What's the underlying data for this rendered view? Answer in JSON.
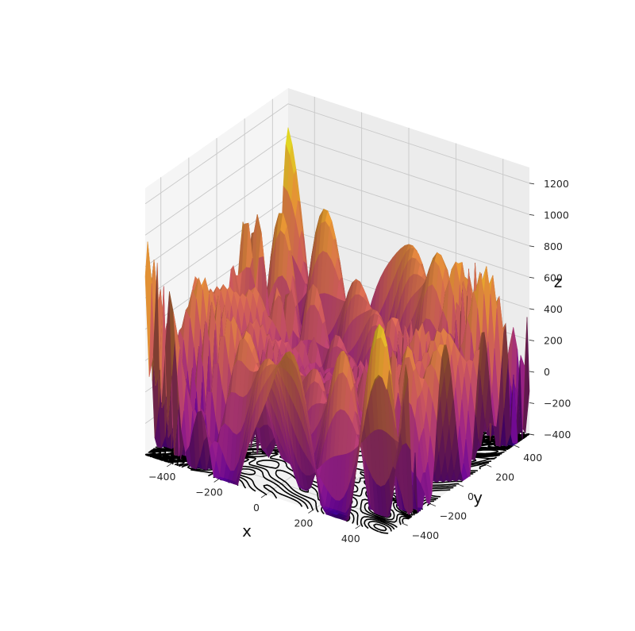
{
  "chart_data": {
    "type": "surface3d",
    "title": "",
    "xlabel": "x",
    "ylabel": "y",
    "zlabel": "z",
    "x_ticks": [
      -400,
      -200,
      0,
      200,
      400
    ],
    "y_ticks": [
      -400,
      -200,
      0,
      200,
      400
    ],
    "z_ticks": [
      -400,
      -200,
      0,
      200,
      400,
      600,
      800,
      1000,
      1200
    ],
    "xlim": [
      -512,
      512
    ],
    "ylim": [
      -512,
      512
    ],
    "zlim": [
      -400,
      1300
    ],
    "colormap": "plasma",
    "colormap_stops": [
      "#0d0887",
      "#6a00a8",
      "#b12a90",
      "#e16462",
      "#fca636",
      "#f0f921"
    ],
    "contour_color": "#000000",
    "pane_color": "#f2f2f2",
    "grid": true,
    "function": "eggholder",
    "description_of_projection": "contour lines of the surface projected onto the floor of the axes box"
  }
}
